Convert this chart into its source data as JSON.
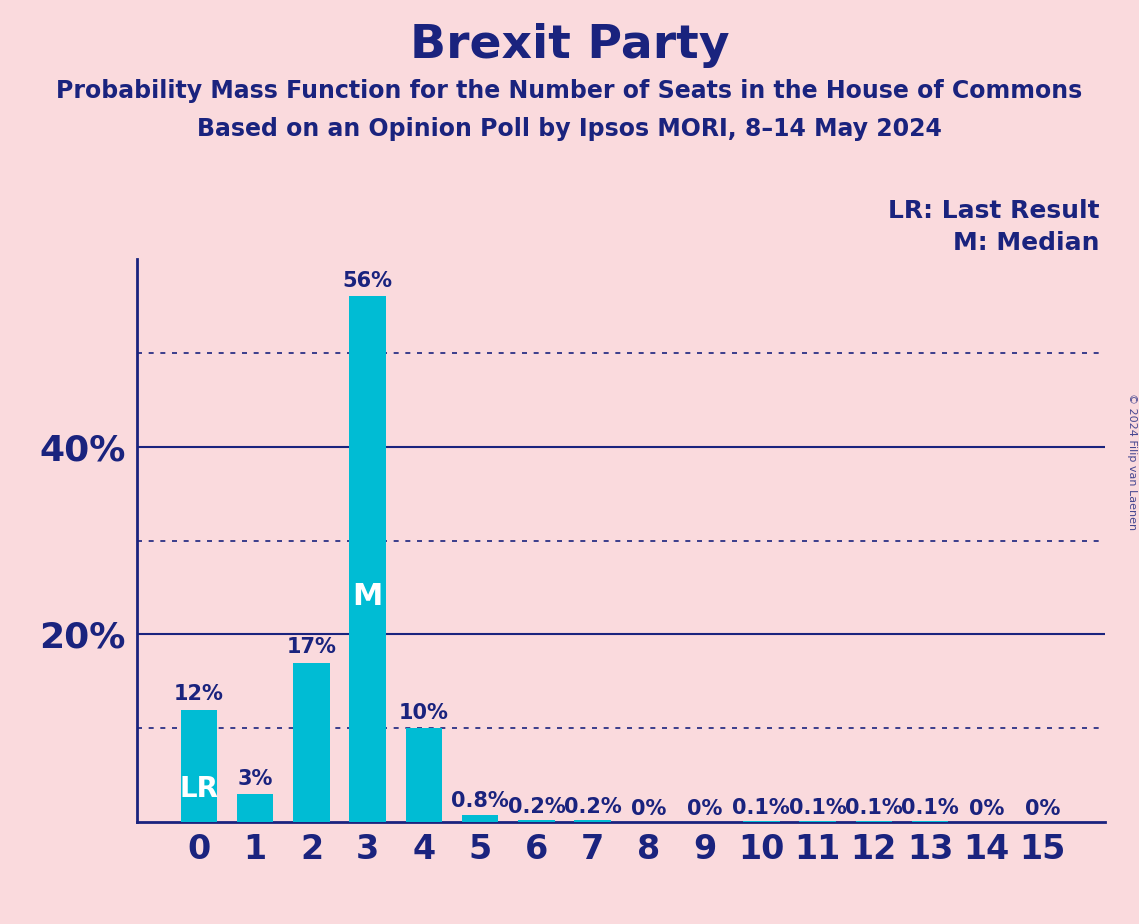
{
  "title": "Brexit Party",
  "subtitle1": "Probability Mass Function for the Number of Seats in the House of Commons",
  "subtitle2": "Based on an Opinion Poll by Ipsos MORI, 8–14 May 2024",
  "categories": [
    0,
    1,
    2,
    3,
    4,
    5,
    6,
    7,
    8,
    9,
    10,
    11,
    12,
    13,
    14,
    15
  ],
  "values": [
    12,
    3,
    17,
    56,
    10,
    0.8,
    0.2,
    0.2,
    0,
    0,
    0.1,
    0.1,
    0.1,
    0.1,
    0,
    0
  ],
  "bar_labels": [
    "12%",
    "3%",
    "17%",
    "56%",
    "10%",
    "0.8%",
    "0.2%",
    "0.2%",
    "0%",
    "0%",
    "0.1%",
    "0.1%",
    "0.1%",
    "0.1%",
    "0%",
    "0%"
  ],
  "bar_color": "#00BCD4",
  "background_color": "#FADADD",
  "title_color": "#1a237e",
  "axis_color": "#1a237e",
  "label_color": "#1a237e",
  "bar_label_color_outside": "#1a237e",
  "bar_label_color_inside": "#ffffff",
  "grid_solid_color": "#1a237e",
  "grid_dot_color": "#1a237e",
  "ylim": [
    0,
    60
  ],
  "solid_gridlines": [
    20,
    40
  ],
  "dotted_gridlines": [
    10,
    30,
    50
  ],
  "lr_bar": 0,
  "median_bar": 3,
  "legend_lr": "LR: Last Result",
  "legend_m": "M: Median",
  "copyright": "© 2024 Filip van Laenen",
  "title_fontsize": 34,
  "subtitle_fontsize": 17,
  "bar_label_fontsize": 15,
  "tick_fontsize": 24,
  "legend_fontsize": 18,
  "inside_label_fontsize": 22,
  "ytick_fontsize": 26
}
